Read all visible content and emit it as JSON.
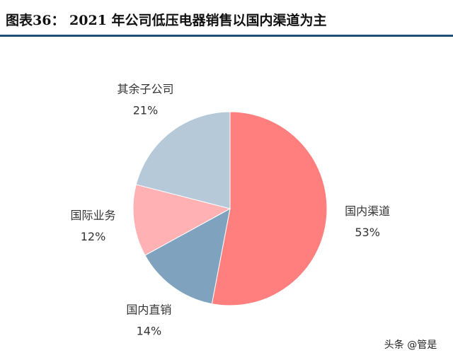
{
  "chart_data": {
    "type": "pie",
    "title": "图表36：  2021 年公司低压电器销售以国内渠道为主",
    "categories": [
      "国内渠道",
      "国内直销",
      "国际业务",
      "其余子公司"
    ],
    "values": [
      53,
      14,
      12,
      21
    ],
    "value_labels": [
      "53%",
      "14%",
      "12%",
      "21%"
    ],
    "colors": [
      "#ff7f7f",
      "#7fa3bf",
      "#ffb1b4",
      "#b5c9d9"
    ],
    "watermark": "头条 @管是"
  }
}
